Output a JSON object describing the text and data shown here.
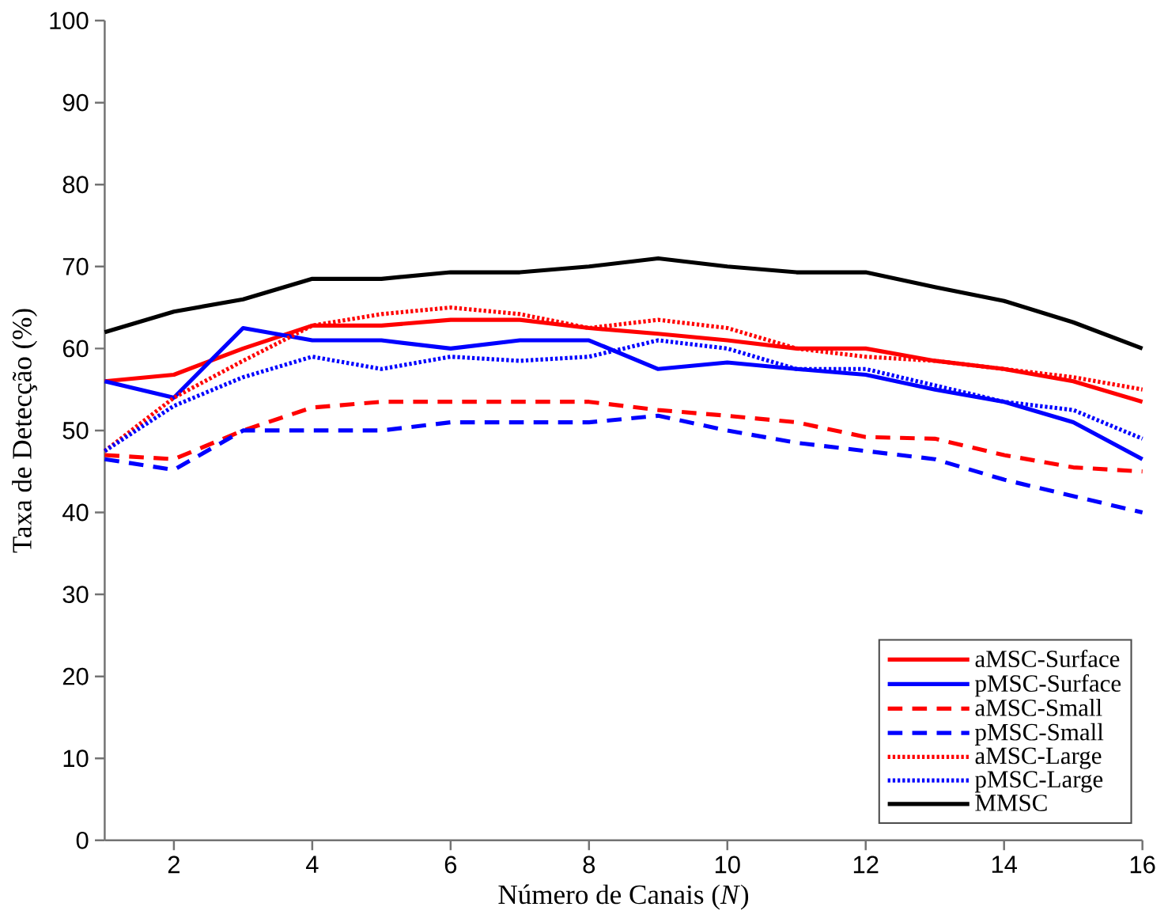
{
  "chart_data": {
    "type": "line",
    "xlabel": "Número de Canais (*N*)",
    "ylabel": "Taxa de Detecção (%)",
    "x": [
      1,
      2,
      3,
      4,
      5,
      6,
      7,
      8,
      9,
      10,
      11,
      12,
      13,
      14,
      15,
      16
    ],
    "xlim": [
      1,
      16
    ],
    "ylim": [
      0,
      100
    ],
    "xticks": [
      2,
      4,
      6,
      8,
      10,
      12,
      14,
      16
    ],
    "yticks": [
      0,
      10,
      20,
      30,
      40,
      50,
      60,
      70,
      80,
      90,
      100
    ],
    "grid": false,
    "legend": "bottom right",
    "series": [
      {
        "name": "aMSC-Surface",
        "color": "#ff0000",
        "line_style": "solid",
        "values": [
          56,
          56.8,
          60,
          62.8,
          62.8,
          63.5,
          63.5,
          62.5,
          61.8,
          61,
          60,
          60,
          58.5,
          57.5,
          56,
          53.5
        ]
      },
      {
        "name": "pMSC-Surface",
        "color": "#0000ff",
        "line_style": "solid",
        "values": [
          56,
          54,
          62.5,
          61,
          61,
          60,
          61,
          61,
          57.5,
          58.3,
          57.5,
          56.8,
          55,
          53.5,
          51,
          46.5
        ]
      },
      {
        "name": "aMSC-Small",
        "color": "#ff0000",
        "line_style": "dashed",
        "values": [
          47,
          46.5,
          50,
          52.8,
          53.5,
          53.5,
          53.5,
          53.5,
          52.5,
          51.8,
          51,
          49.2,
          49,
          47,
          45.5,
          45
        ]
      },
      {
        "name": "pMSC-Small",
        "color": "#0000ff",
        "line_style": "dashed",
        "values": [
          46.5,
          45.2,
          50,
          50,
          50,
          51,
          51,
          51,
          51.8,
          50,
          48.5,
          47.5,
          46.5,
          44,
          42,
          40
        ]
      },
      {
        "name": "aMSC-Large",
        "color": "#ff0000",
        "line_style": "dotted",
        "values": [
          47.5,
          54,
          58.5,
          62.8,
          64.2,
          65,
          64.2,
          62.5,
          63.5,
          62.5,
          60,
          59,
          58.5,
          57.5,
          56.5,
          55
        ]
      },
      {
        "name": "pMSC-Large",
        "color": "#0000ff",
        "line_style": "dotted",
        "values": [
          47.5,
          53,
          56.5,
          59,
          57.5,
          59,
          58.5,
          59,
          61,
          60,
          57.5,
          57.5,
          55.5,
          53.5,
          52.5,
          49
        ]
      },
      {
        "name": "MMSC",
        "color": "#000000",
        "line_style": "solid",
        "values": [
          62,
          64.5,
          66,
          68.5,
          68.5,
          69.3,
          69.3,
          70,
          71,
          70,
          69.3,
          69.3,
          67.5,
          65.8,
          63.2,
          60
        ]
      }
    ]
  }
}
